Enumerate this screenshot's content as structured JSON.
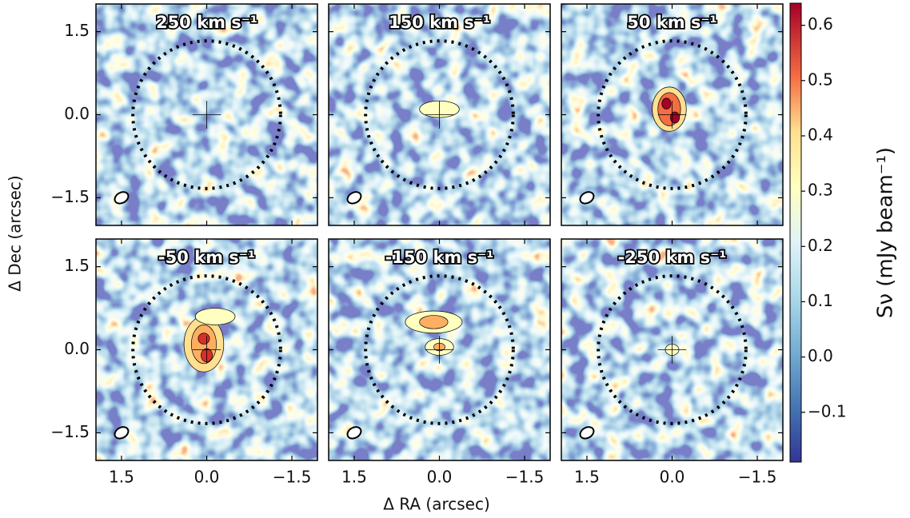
{
  "chart_data": {
    "type": "image",
    "panels": [
      {
        "label": "250 km s⁻¹"
      },
      {
        "label": "150 km s⁻¹"
      },
      {
        "label": "50 km s⁻¹"
      },
      {
        "label": "-50 km s⁻¹"
      },
      {
        "label": "-150 km s⁻¹"
      },
      {
        "label": "-250 km s⁻¹"
      }
    ],
    "xlabel": "Δ RA (arcsec)",
    "ylabel": "Δ Dec (arcsec)",
    "xlim": [
      1.95,
      -1.95
    ],
    "ylim": [
      -2.0,
      2.0
    ],
    "xticks": [
      1.5,
      {
        "value": 0,
        "label": "0.0"
      },
      {
        "value": -1.5,
        "label": "−1.5"
      }
    ],
    "yticks": [
      1.5,
      {
        "value": 0,
        "label": "0.0"
      },
      {
        "value": -1.5,
        "label": "−1.5"
      }
    ],
    "colorbar": {
      "label": "Sν (mJy beam⁻¹)",
      "clim": [
        -0.19,
        0.64
      ],
      "ticks": [
        0.6,
        0.5,
        0.4,
        0.3,
        0.2,
        0.1,
        {
          "value": 0,
          "label": "0.0"
        },
        {
          "value": -0.1,
          "label": "−0.1"
        }
      ],
      "colormap": "RdYlBu_r"
    }
  }
}
